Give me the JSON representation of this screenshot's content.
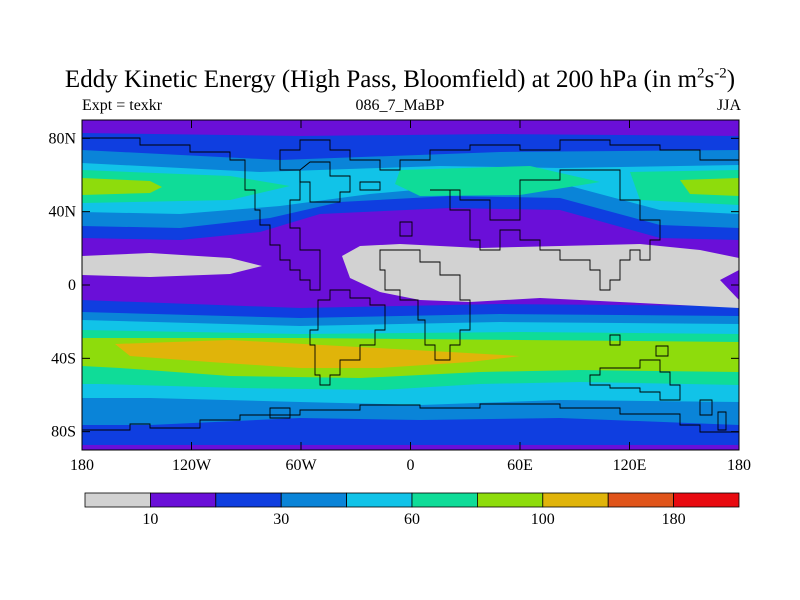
{
  "chart_data": {
    "type": "heatmap",
    "title": "Eddy Kinetic Energy (High Pass, Bloomfield) at 200 hPa (in m",
    "title_sup1": "2",
    "title_mid": "s",
    "title_sup2": "-2",
    "title_end": ")",
    "left_label": "Expt = texkr",
    "center_label": "086_7_MaBP",
    "right_label": "JJA",
    "x_ticks": [
      "180",
      "120W",
      "60W",
      "0",
      "60E",
      "120E",
      "180"
    ],
    "y_ticks": [
      "80N",
      "40N",
      "0",
      "40S",
      "80S"
    ],
    "x_range": [
      -180,
      180
    ],
    "y_range": [
      -90,
      90
    ],
    "colorbar_labels": [
      "10",
      "30",
      "60",
      "100",
      "180"
    ],
    "colorbar_colors": [
      "#d2d2d2",
      "#6a0fd8",
      "#0f3ee0",
      "#0a84d8",
      "#11c3e8",
      "#0fdc98",
      "#8edc0c",
      "#e0b40a",
      "#e0541a",
      "#e80a10"
    ],
    "colors": {
      "gray": "#d2d2d2",
      "purple": "#6a0fd8",
      "blue": "#0f3ee0",
      "mid_blue": "#0a84d8",
      "cyan": "#11c3e8",
      "teal": "#0fdc98",
      "green": "#8edc0c",
      "yellow": "#e0b40a"
    }
  }
}
